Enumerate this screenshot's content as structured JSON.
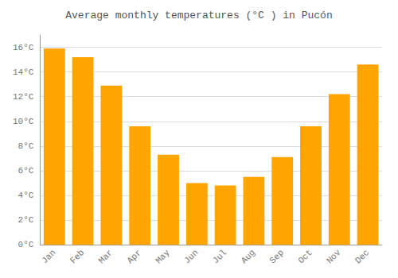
{
  "chart_data": {
    "type": "bar",
    "title": "Average monthly temperatures (°C ) in Pucón",
    "categories": [
      "Jan",
      "Feb",
      "Mar",
      "Apr",
      "May",
      "Jun",
      "Jul",
      "Aug",
      "Sep",
      "Oct",
      "Nov",
      "Dec"
    ],
    "values": [
      15.9,
      15.2,
      12.9,
      9.6,
      7.3,
      5.0,
      4.8,
      5.5,
      7.1,
      9.6,
      12.2,
      14.6
    ],
    "color": "#FFA500",
    "ylim": [
      0,
      17
    ],
    "yticks": [
      {
        "value": 0,
        "label": "0°C"
      },
      {
        "value": 2,
        "label": "2°C"
      },
      {
        "value": 4,
        "label": "4°C"
      },
      {
        "value": 6,
        "label": "6°C"
      },
      {
        "value": 8,
        "label": "8°C"
      },
      {
        "value": 10,
        "label": "10°C"
      },
      {
        "value": 12,
        "label": "12°C"
      },
      {
        "value": 14,
        "label": "14°C"
      },
      {
        "value": 16,
        "label": "16°C"
      }
    ],
    "grid": true
  }
}
